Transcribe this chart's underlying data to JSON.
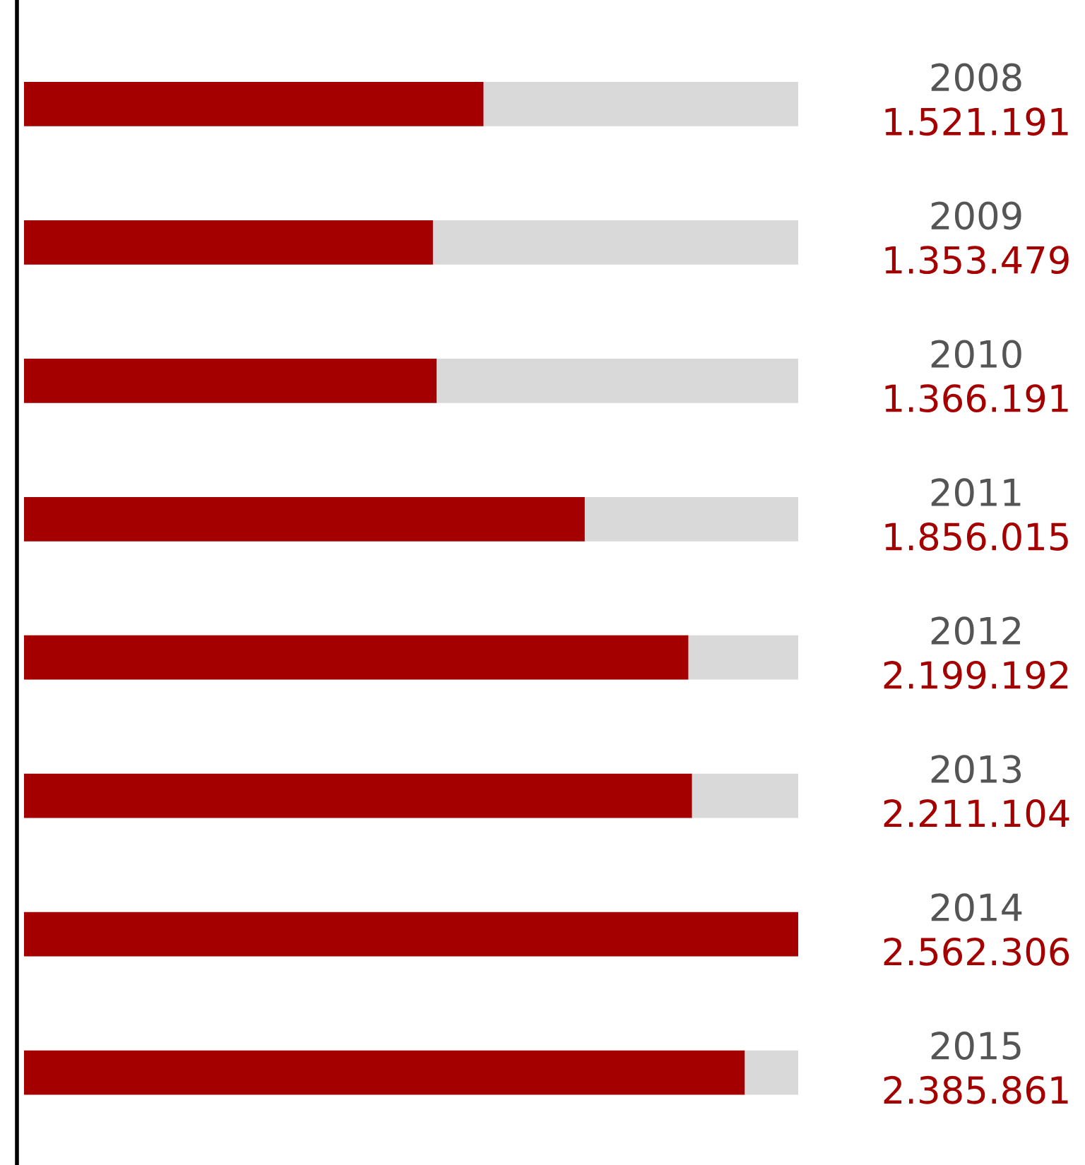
{
  "chart_data": {
    "type": "bar",
    "orientation": "horizontal",
    "stacked": true,
    "categories": [
      "2008",
      "2009",
      "2010",
      "2011",
      "2012",
      "2013",
      "2014",
      "2015"
    ],
    "series": [
      {
        "color": "#a50000",
        "values": [
          1521191,
          1353479,
          1366191,
          1856015,
          2199192,
          2211104,
          2562306,
          2385861
        ],
        "value_labels": [
          "1.521.191",
          "1.353.479",
          "1.366.191",
          "1.856.015",
          "2.199.192",
          "2.211.104",
          "2.562.306",
          "2.385.861"
        ]
      },
      {
        "color": "#d9d9d9",
        "values": [
          1041115,
          1208827,
          1196115,
          706291,
          363114,
          351202,
          0,
          176445
        ]
      }
    ],
    "legend": false
  }
}
